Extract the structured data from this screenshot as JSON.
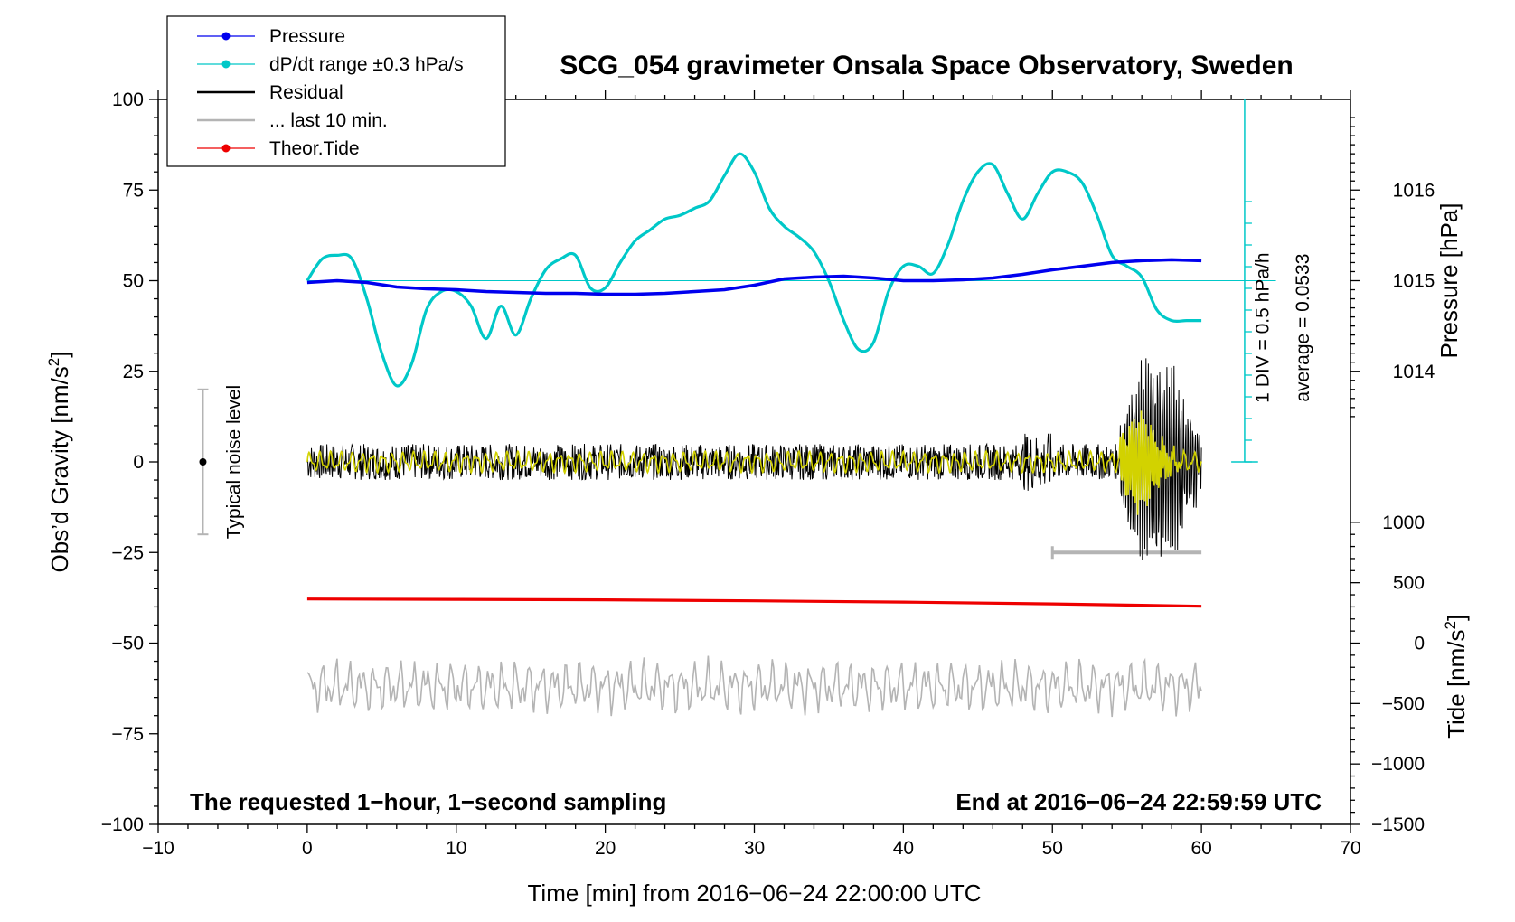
{
  "chart_data": {
    "type": "line",
    "title": "SCG_054 gravimeter Onsala Space Observatory, Sweden",
    "xlabel": "Time [min] from 2016−06−24 22:00:00 UTC",
    "ylabel_left_main": "Obs’d Gravity [nm/s",
    "ylabel_left_sup": "2",
    "ylabel_left_end": "]",
    "ylabel_right_pressure": "Pressure [hPa]",
    "ylabel_right_tide_main": "Tide [nm/s",
    "ylabel_right_tide_sup": "2",
    "ylabel_right_tide_end": "]",
    "xlim": [
      -10,
      70
    ],
    "ylim": [
      -100,
      100
    ],
    "x_ticks": [
      "−10",
      "0",
      "10",
      "20",
      "30",
      "40",
      "50",
      "60",
      "70"
    ],
    "y_ticks": [
      "100",
      "75",
      "50",
      "25",
      "0",
      "−25",
      "−50",
      "−75",
      "−100"
    ],
    "pressure_ticks": [
      "1016",
      "1015",
      "1014"
    ],
    "tide_ticks": [
      "1000",
      "500",
      "0",
      "−500",
      "−1000",
      "−1500"
    ],
    "legend": [
      {
        "label": "Pressure",
        "color": "#0000ee",
        "marker": true
      },
      {
        "label": "dP/dt range ±0.3 hPa/s",
        "color": "#00c8c8",
        "marker": true
      },
      {
        "label": "Residual",
        "color": "#000000",
        "marker": false
      },
      {
        "label": "... last 10 min.",
        "color": "#b4b4b4",
        "marker": false
      },
      {
        "label": "Theor.Tide",
        "color": "#ee0000",
        "marker": true
      }
    ],
    "annotations": {
      "bottom_left": "The requested 1−hour, 1−second sampling",
      "bottom_right": "End at 2016−06−24 22:59:59 UTC",
      "noise_label": "Typical noise level",
      "div_label": "1 DIV = 0.5 hPa/h",
      "avg_label": "average = 0.0533"
    },
    "series": [
      {
        "name": "Pressure",
        "axis": "pressure_hPa",
        "color": "#0000ee",
        "x": [
          0,
          2,
          4,
          6,
          8,
          10,
          12,
          14,
          16,
          18,
          20,
          22,
          24,
          26,
          28,
          30,
          32,
          34,
          36,
          38,
          40,
          42,
          44,
          46,
          48,
          50,
          52,
          54,
          56,
          58,
          60
        ],
        "y": [
          1014.98,
          1015.0,
          1014.98,
          1014.93,
          1014.91,
          1014.9,
          1014.88,
          1014.87,
          1014.86,
          1014.86,
          1014.85,
          1014.85,
          1014.86,
          1014.88,
          1014.9,
          1014.95,
          1015.02,
          1015.04,
          1015.05,
          1015.03,
          1015.0,
          1015.0,
          1015.01,
          1015.03,
          1015.07,
          1015.12,
          1015.16,
          1015.2,
          1015.22,
          1015.23,
          1015.22
        ]
      },
      {
        "name": "dP/dt range ±0.3 hPa/s",
        "axis": "gravity_units",
        "color": "#00c8c8",
        "x": [
          0,
          1,
          2,
          3,
          4,
          5,
          6,
          7,
          8,
          9,
          10,
          11,
          12,
          13,
          14,
          15,
          16,
          17,
          18,
          19,
          20,
          21,
          22,
          23,
          24,
          25,
          26,
          27,
          28,
          29,
          30,
          31,
          32,
          33,
          34,
          35,
          36,
          37,
          38,
          39,
          40,
          41,
          42,
          43,
          44,
          45,
          46,
          47,
          48,
          49,
          50,
          51,
          52,
          53,
          54,
          55,
          56,
          57,
          58,
          59,
          60
        ],
        "y": [
          50,
          56,
          57,
          56,
          45,
          30,
          21,
          27,
          42,
          47,
          47,
          43,
          34,
          43,
          35,
          45,
          53,
          56,
          57,
          48,
          48,
          55,
          61,
          64,
          67,
          68,
          70,
          72,
          79,
          85,
          80,
          70,
          65,
          62,
          58,
          50,
          39,
          31,
          33,
          47,
          54,
          54,
          52,
          60,
          72,
          80,
          82,
          74,
          67,
          74,
          80,
          80,
          77,
          68,
          57,
          54,
          51,
          42,
          39,
          39,
          39
        ]
      },
      {
        "name": "Residual",
        "axis": "gravity",
        "color": "#000000",
        "x": [
          0,
          60
        ],
        "y": [
          0,
          0
        ]
      },
      {
        "name": "... last 10 min.",
        "axis": "gravity",
        "color": "#b4b4b4",
        "x": [
          0,
          60
        ],
        "y": [
          -62,
          -62
        ]
      },
      {
        "name": "Theor.Tide",
        "axis": "tide_nm_s2",
        "color": "#ee0000",
        "x": [
          0,
          10,
          20,
          30,
          40,
          50,
          60
        ],
        "y": [
          365,
          362,
          358,
          350,
          340,
          325,
          305
        ]
      }
    ]
  }
}
